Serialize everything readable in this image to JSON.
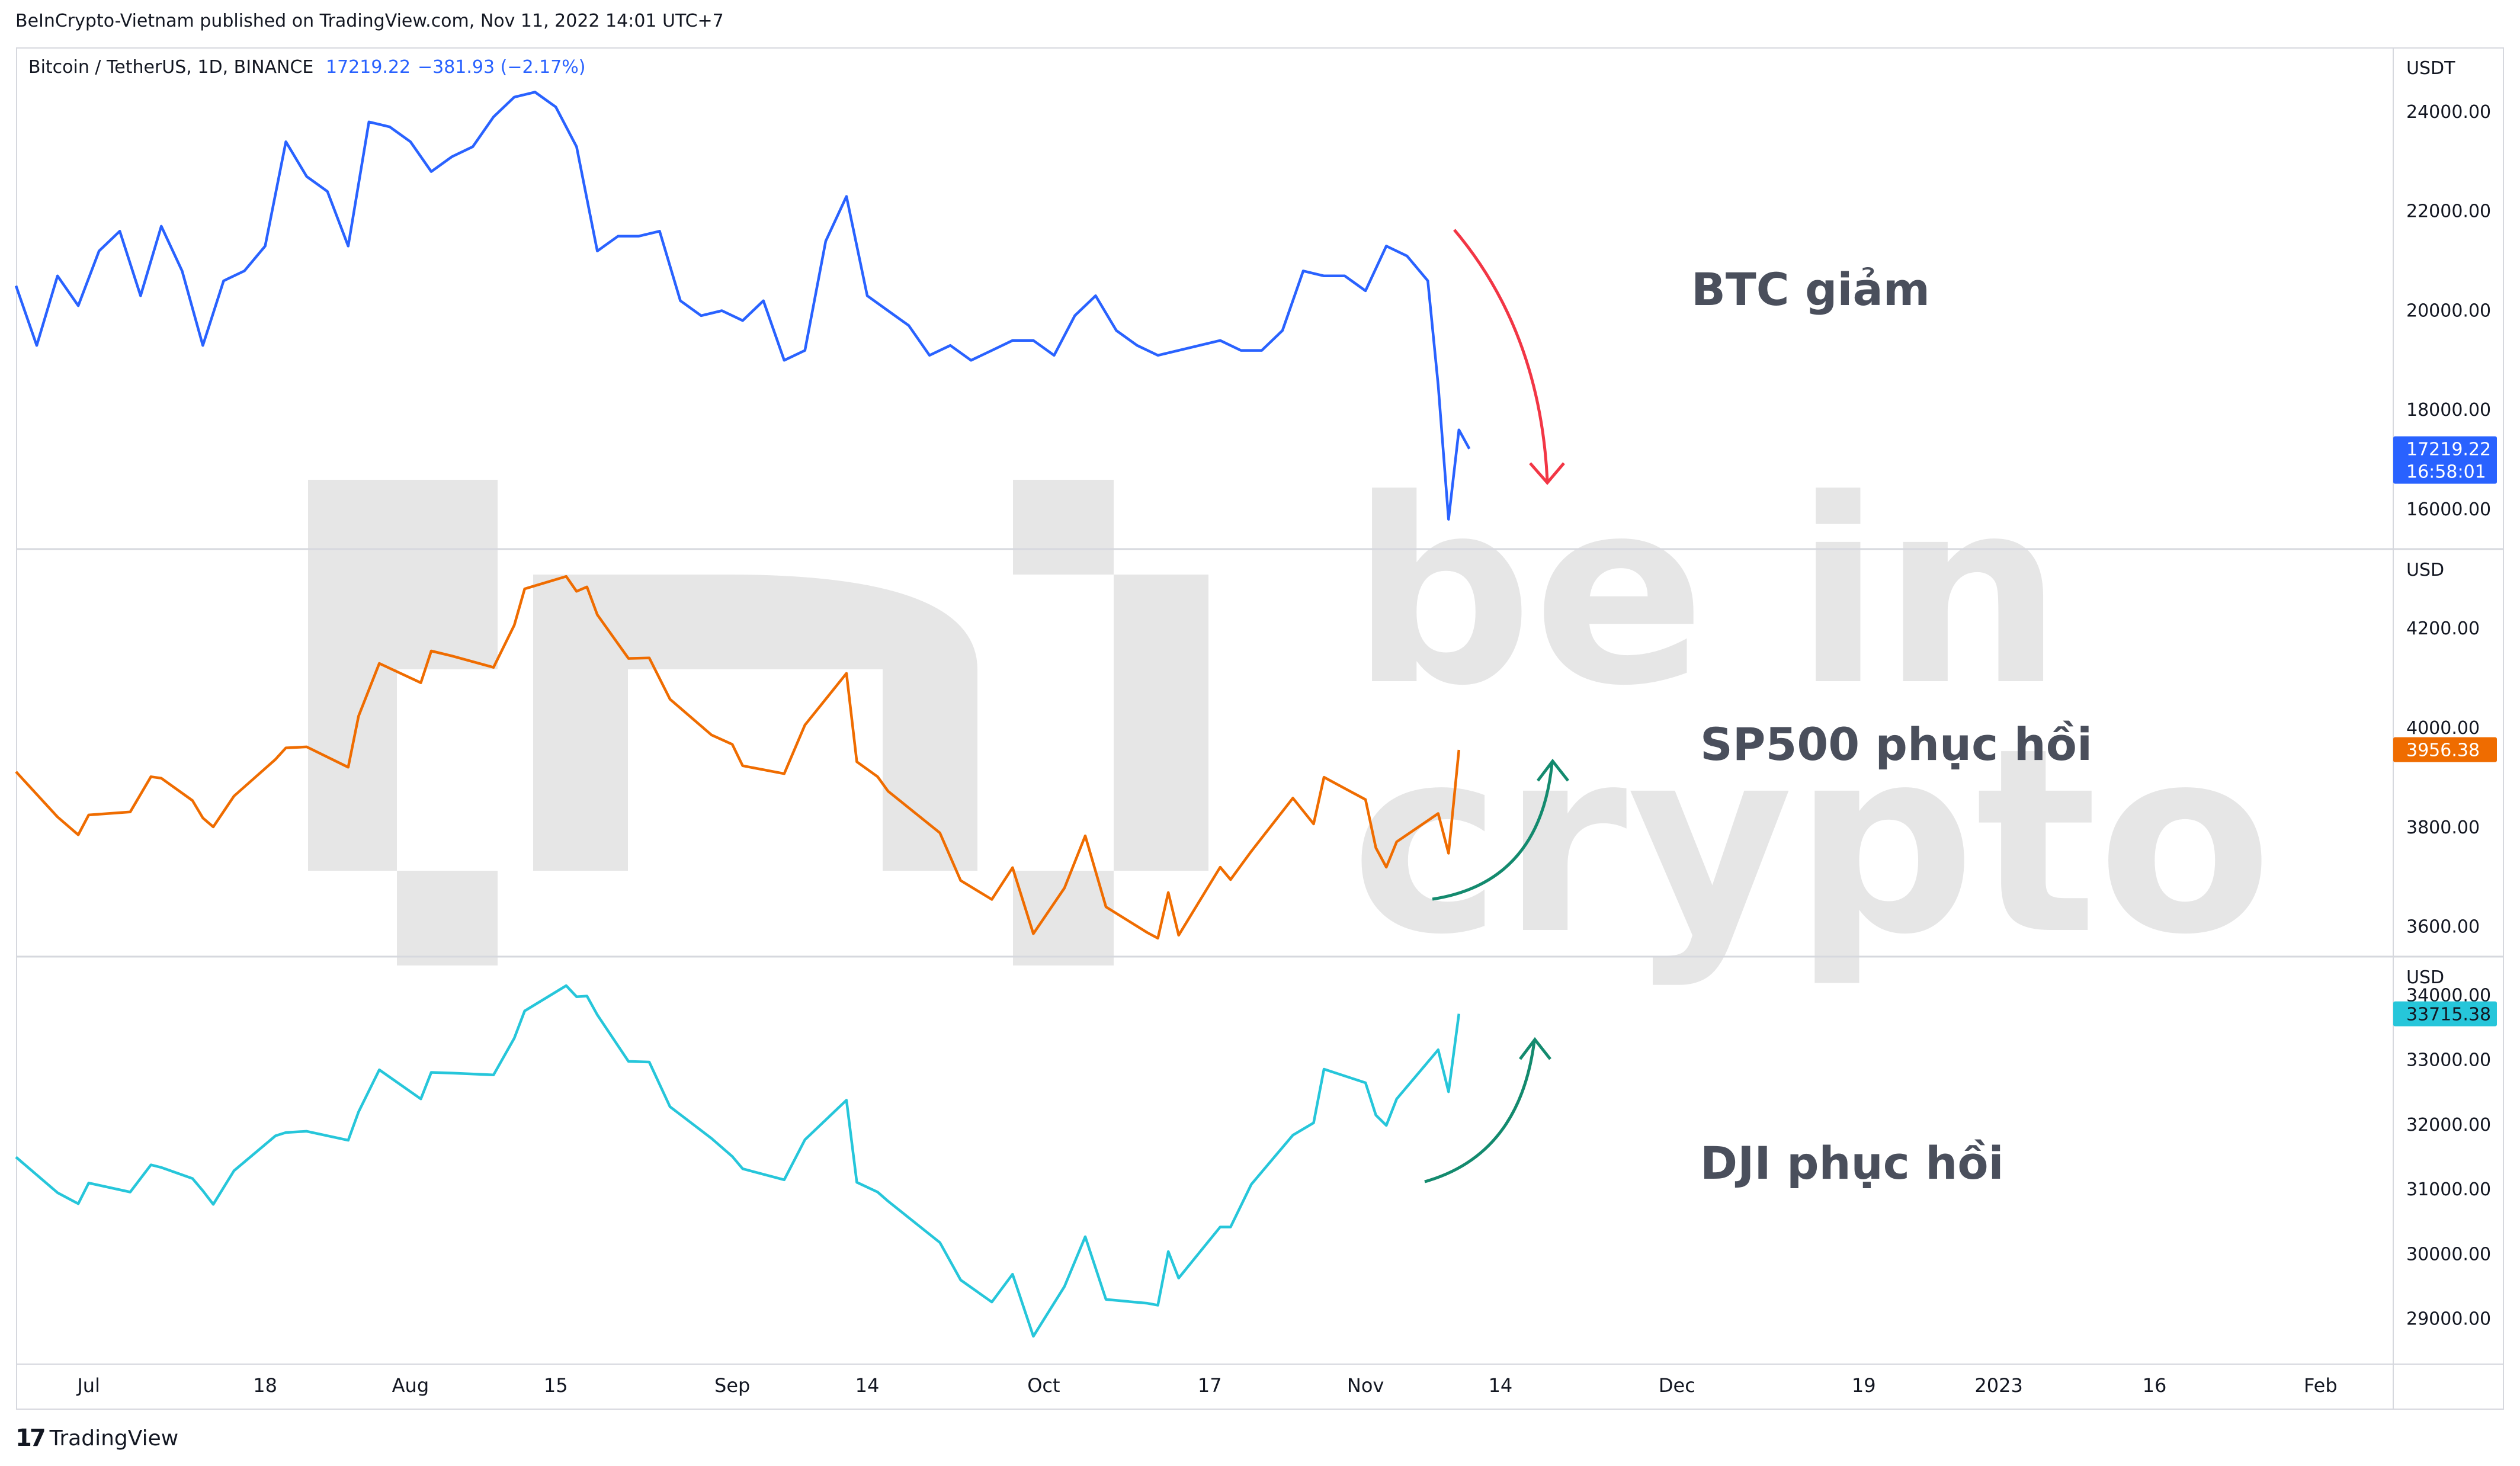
{
  "header": {
    "published": "BeInCrypto-Vietnam published on TradingView.com, Nov 11, 2022 14:01 UTC+7"
  },
  "footer": {
    "brand_mark": "17",
    "brand": "TradingView"
  },
  "watermark": {
    "line1": "be in",
    "line2": "crypto"
  },
  "colors": {
    "btc": "#2962ff",
    "spx": "#ef6c00",
    "dji": "#26c6da",
    "down_arrow": "#f23645",
    "up_arrow": "#138a6e",
    "grid": "#d6d8de"
  },
  "chart_data": [
    {
      "type": "line",
      "legend": {
        "symbol": "Bitcoin / TetherUS, 1D, BINANCE",
        "last": "17219.22",
        "change": "−381.93 (−2.17%)"
      },
      "currency": "USDT",
      "yticks": [
        "24000.00",
        "22000.00",
        "20000.00",
        "18000.00",
        "16000.00"
      ],
      "ylim": [
        15200,
        25300
      ],
      "price_tag": {
        "value": "17219.22",
        "timer": "16:58:01",
        "y": 17219.22
      },
      "annotation": "BTC giảm",
      "x": [
        "2022-06-24",
        "2022-06-26",
        "2022-06-28",
        "2022-06-30",
        "2022-07-02",
        "2022-07-04",
        "2022-07-06",
        "2022-07-08",
        "2022-07-10",
        "2022-07-12",
        "2022-07-14",
        "2022-07-16",
        "2022-07-18",
        "2022-07-20",
        "2022-07-22",
        "2022-07-24",
        "2022-07-26",
        "2022-07-28",
        "2022-07-30",
        "2022-08-01",
        "2022-08-03",
        "2022-08-05",
        "2022-08-07",
        "2022-08-09",
        "2022-08-11",
        "2022-08-13",
        "2022-08-15",
        "2022-08-17",
        "2022-08-19",
        "2022-08-21",
        "2022-08-23",
        "2022-08-25",
        "2022-08-27",
        "2022-08-29",
        "2022-08-31",
        "2022-09-02",
        "2022-09-04",
        "2022-09-06",
        "2022-09-08",
        "2022-09-10",
        "2022-09-12",
        "2022-09-14",
        "2022-09-16",
        "2022-09-18",
        "2022-09-20",
        "2022-09-22",
        "2022-09-24",
        "2022-09-26",
        "2022-09-28",
        "2022-09-30",
        "2022-10-02",
        "2022-10-04",
        "2022-10-06",
        "2022-10-08",
        "2022-10-10",
        "2022-10-12",
        "2022-10-14",
        "2022-10-16",
        "2022-10-18",
        "2022-10-20",
        "2022-10-22",
        "2022-10-24",
        "2022-10-26",
        "2022-10-28",
        "2022-10-30",
        "2022-11-01",
        "2022-11-03",
        "2022-11-05",
        "2022-11-07",
        "2022-11-08",
        "2022-11-09",
        "2022-11-10",
        "2022-11-11"
      ],
      "values": [
        20500,
        19300,
        20700,
        20100,
        21200,
        21600,
        20300,
        21700,
        20800,
        19300,
        20600,
        20800,
        21300,
        23400,
        22700,
        22400,
        21300,
        23800,
        23700,
        23400,
        22800,
        23100,
        23300,
        23900,
        24300,
        24400,
        24100,
        23300,
        21200,
        21500,
        21500,
        21600,
        20200,
        19900,
        20000,
        19800,
        20200,
        19000,
        19200,
        21400,
        22300,
        20300,
        20000,
        19700,
        19100,
        19300,
        19000,
        19200,
        19400,
        19400,
        19100,
        19900,
        20300,
        19600,
        19300,
        19100,
        19200,
        19300,
        19400,
        19200,
        19200,
        19600,
        20800,
        20700,
        20700,
        20400,
        21300,
        21100,
        20600,
        18500,
        15800,
        17600,
        17219
      ]
    },
    {
      "type": "line",
      "currency": "USD",
      "yticks": [
        "4200.00",
        "4000.00",
        "3800.00",
        "3600.00"
      ],
      "ylim": [
        3540,
        4360
      ],
      "price_tag": {
        "value": "3956.38",
        "y": 3956.38
      },
      "annotation": "SP500 phục hồi",
      "x": [
        "2022-06-24",
        "2022-06-28",
        "2022-06-30",
        "2022-07-01",
        "2022-07-05",
        "2022-07-07",
        "2022-07-08",
        "2022-07-11",
        "2022-07-12",
        "2022-07-13",
        "2022-07-15",
        "2022-07-19",
        "2022-07-20",
        "2022-07-22",
        "2022-07-26",
        "2022-07-27",
        "2022-07-29",
        "2022-08-02",
        "2022-08-03",
        "2022-08-05",
        "2022-08-09",
        "2022-08-11",
        "2022-08-12",
        "2022-08-16",
        "2022-08-17",
        "2022-08-18",
        "2022-08-19",
        "2022-08-22",
        "2022-08-24",
        "2022-08-26",
        "2022-08-30",
        "2022-09-01",
        "2022-09-02",
        "2022-09-06",
        "2022-09-08",
        "2022-09-12",
        "2022-09-13",
        "2022-09-15",
        "2022-09-16",
        "2022-09-21",
        "2022-09-23",
        "2022-09-26",
        "2022-09-28",
        "2022-09-30",
        "2022-10-03",
        "2022-10-05",
        "2022-10-07",
        "2022-10-11",
        "2022-10-12",
        "2022-10-13",
        "2022-10-14",
        "2022-10-18",
        "2022-10-19",
        "2022-10-21",
        "2022-10-25",
        "2022-10-27",
        "2022-10-28",
        "2022-11-01",
        "2022-11-02",
        "2022-11-03",
        "2022-11-04",
        "2022-11-08",
        "2022-11-09",
        "2022-11-10"
      ],
      "values": [
        3912,
        3821,
        3785,
        3825,
        3831,
        3902,
        3899,
        3854,
        3819,
        3801,
        3863,
        3937,
        3960,
        3962,
        3921,
        4024,
        4130,
        4091,
        4155,
        4145,
        4122,
        4207,
        4280,
        4305,
        4275,
        4284,
        4228,
        4140,
        4141,
        4058,
        3986,
        3967,
        3924,
        3908,
        4006,
        4110,
        3932,
        3902,
        3873,
        3789,
        3693,
        3655,
        3719,
        3586,
        3678,
        3783,
        3640,
        3588,
        3577,
        3669,
        3583,
        3720,
        3695,
        3752,
        3859,
        3807,
        3901,
        3856,
        3759,
        3720,
        3771,
        3828,
        3748,
        3956
      ]
    },
    {
      "type": "line",
      "currency": "USD",
      "yticks": [
        "34000.00",
        "33000.00",
        "32000.00",
        "31000.00",
        "30000.00",
        "29000.00"
      ],
      "ylim": [
        28300,
        34600
      ],
      "price_tag": {
        "value": "33715.38",
        "y": 33715.38
      },
      "annotation": "DJI phục hồi",
      "x": [
        "2022-06-24",
        "2022-06-28",
        "2022-06-30",
        "2022-07-01",
        "2022-07-05",
        "2022-07-07",
        "2022-07-08",
        "2022-07-11",
        "2022-07-12",
        "2022-07-13",
        "2022-07-15",
        "2022-07-19",
        "2022-07-20",
        "2022-07-22",
        "2022-07-26",
        "2022-07-27",
        "2022-07-29",
        "2022-08-02",
        "2022-08-03",
        "2022-08-05",
        "2022-08-09",
        "2022-08-11",
        "2022-08-12",
        "2022-08-16",
        "2022-08-17",
        "2022-08-18",
        "2022-08-19",
        "2022-08-22",
        "2022-08-24",
        "2022-08-26",
        "2022-08-30",
        "2022-09-01",
        "2022-09-02",
        "2022-09-06",
        "2022-09-08",
        "2022-09-12",
        "2022-09-13",
        "2022-09-15",
        "2022-09-16",
        "2022-09-21",
        "2022-09-23",
        "2022-09-26",
        "2022-09-28",
        "2022-09-30",
        "2022-10-03",
        "2022-10-05",
        "2022-10-07",
        "2022-10-11",
        "2022-10-12",
        "2022-10-13",
        "2022-10-14",
        "2022-10-18",
        "2022-10-19",
        "2022-10-21",
        "2022-10-25",
        "2022-10-27",
        "2022-10-28",
        "2022-11-01",
        "2022-11-02",
        "2022-11-03",
        "2022-11-04",
        "2022-11-08",
        "2022-11-09",
        "2022-11-10"
      ],
      "values": [
        31500,
        30950,
        30780,
        31100,
        30960,
        31380,
        31340,
        31170,
        30980,
        30770,
        31290,
        31830,
        31880,
        31900,
        31760,
        32200,
        32850,
        32400,
        32810,
        32800,
        32770,
        33340,
        33760,
        34150,
        33980,
        33990,
        33700,
        32980,
        32970,
        32280,
        31790,
        31510,
        31320,
        31150,
        31770,
        32380,
        31110,
        30960,
        30820,
        30180,
        29600,
        29260,
        29690,
        28730,
        29500,
        30270,
        29300,
        29240,
        29210,
        30040,
        29630,
        30420,
        30420,
        31080,
        31840,
        32030,
        32860,
        32650,
        32150,
        31990,
        32400,
        33160,
        32510,
        33715
      ]
    }
  ],
  "xaxis": {
    "labels": [
      {
        "text": "Jul",
        "date": "2022-07-01"
      },
      {
        "text": "18",
        "date": "2022-07-18"
      },
      {
        "text": "Aug",
        "date": "2022-08-01"
      },
      {
        "text": "15",
        "date": "2022-08-15"
      },
      {
        "text": "Sep",
        "date": "2022-09-01"
      },
      {
        "text": "14",
        "date": "2022-09-14"
      },
      {
        "text": "Oct",
        "date": "2022-10-01"
      },
      {
        "text": "17",
        "date": "2022-10-17"
      },
      {
        "text": "Nov",
        "date": "2022-11-01"
      },
      {
        "text": "14",
        "date": "2022-11-14"
      },
      {
        "text": "Dec",
        "date": "2022-12-01"
      },
      {
        "text": "19",
        "date": "2022-12-19"
      },
      {
        "text": "2023",
        "date": "2023-01-01"
      },
      {
        "text": "16",
        "date": "2023-01-16"
      },
      {
        "text": "Feb",
        "date": "2023-02-01"
      }
    ],
    "range": [
      "2022-06-24",
      "2023-02-08"
    ]
  }
}
